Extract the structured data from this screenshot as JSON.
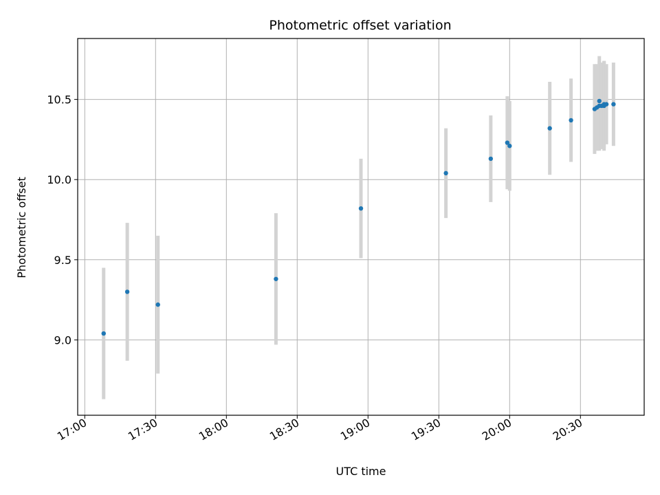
{
  "chart_data": {
    "type": "scatter",
    "title": "Photometric offset variation",
    "xlabel": "UTC time",
    "ylabel": "Photometric offset",
    "x_ticks": [
      "17:00",
      "17:30",
      "18:00",
      "18:30",
      "19:00",
      "19:30",
      "20:00",
      "20:30"
    ],
    "y_ticks": [
      "9.0",
      "9.5",
      "10.0",
      "10.5"
    ],
    "x_range": [
      "16:57",
      "20:57"
    ],
    "ylim": [
      8.53,
      10.88
    ],
    "grid": true,
    "colors": {
      "point": "#1f77b4",
      "errorbar": "#d3d3d3",
      "grid": "#b0b0b0"
    },
    "points": [
      {
        "x": "17:08",
        "y": 9.04,
        "yerr": 0.41
      },
      {
        "x": "17:18",
        "y": 9.3,
        "yerr": 0.43
      },
      {
        "x": "17:31",
        "y": 9.22,
        "yerr": 0.43
      },
      {
        "x": "18:21",
        "y": 9.38,
        "yerr": 0.41
      },
      {
        "x": "18:57",
        "y": 9.82,
        "yerr": 0.31
      },
      {
        "x": "19:33",
        "y": 10.04,
        "yerr": 0.28
      },
      {
        "x": "19:52",
        "y": 10.13,
        "yerr": 0.27
      },
      {
        "x": "19:59",
        "y": 10.23,
        "yerr": 0.29
      },
      {
        "x": "20:00",
        "y": 10.21,
        "yerr": 0.28
      },
      {
        "x": "20:17",
        "y": 10.32,
        "yerr": 0.29
      },
      {
        "x": "20:26",
        "y": 10.37,
        "yerr": 0.26
      },
      {
        "x": "20:36",
        "y": 10.44,
        "yerr": 0.28
      },
      {
        "x": "20:37",
        "y": 10.45,
        "yerr": 0.27
      },
      {
        "x": "20:38",
        "y": 10.49,
        "yerr": 0.28
      },
      {
        "x": "20:38",
        "y": 10.46,
        "yerr": 0.28
      },
      {
        "x": "20:39",
        "y": 10.46,
        "yerr": 0.27
      },
      {
        "x": "20:40",
        "y": 10.46,
        "yerr": 0.28
      },
      {
        "x": "20:40",
        "y": 10.47,
        "yerr": 0.27
      },
      {
        "x": "20:41",
        "y": 10.47,
        "yerr": 0.25
      },
      {
        "x": "20:44",
        "y": 10.47,
        "yerr": 0.26
      }
    ]
  }
}
